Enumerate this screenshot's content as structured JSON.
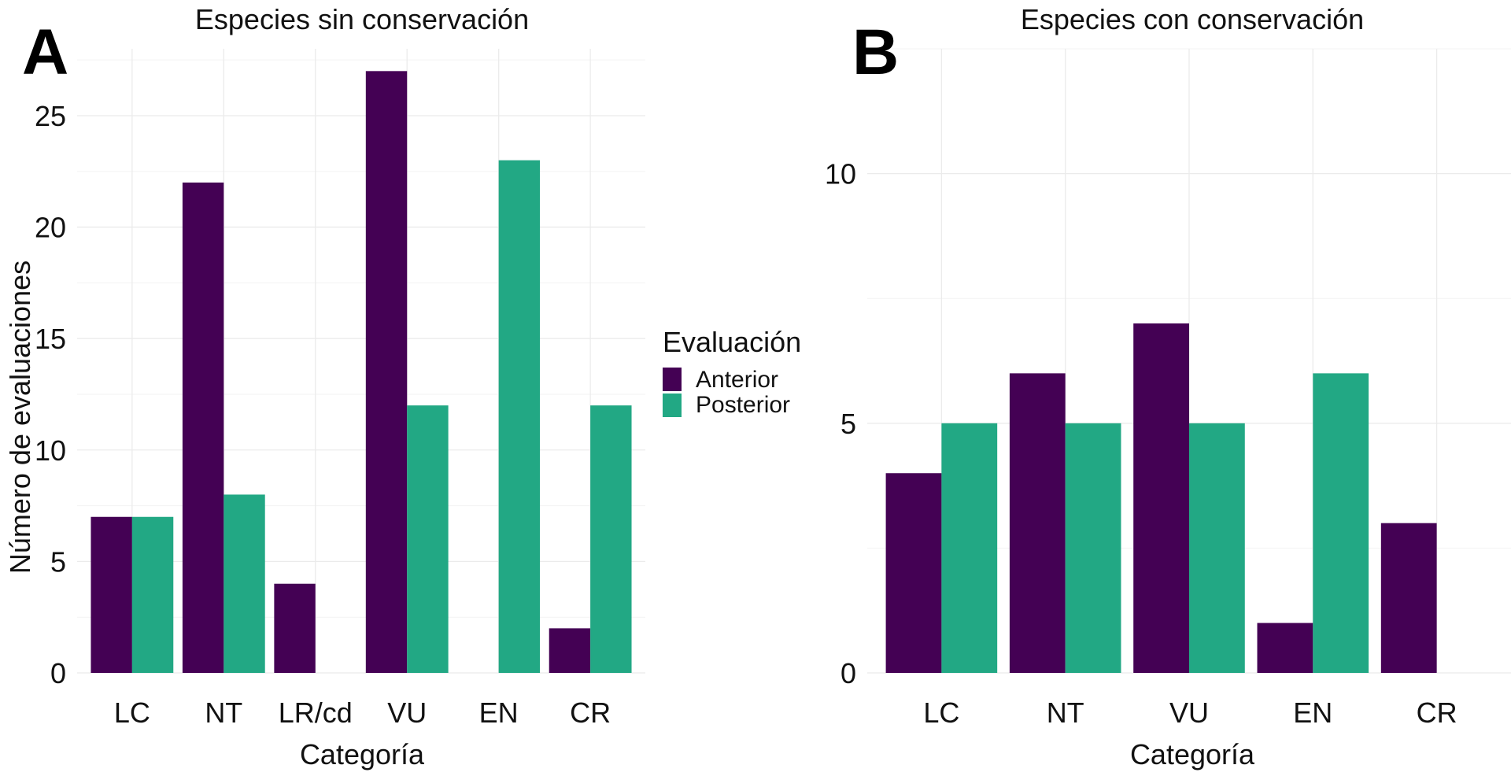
{
  "chart_data": [
    {
      "panel_label": "A",
      "type": "bar",
      "title": "Especies sin conservación",
      "xlabel": "Categoría",
      "ylabel": "Número de evaluaciones",
      "categories": [
        "LC",
        "NT",
        "LR/cd",
        "VU",
        "EN",
        "CR"
      ],
      "series": [
        {
          "name": "Anterior",
          "values": [
            7,
            22,
            4,
            27,
            0,
            2
          ]
        },
        {
          "name": "Posterior",
          "values": [
            7,
            8,
            0,
            12,
            23,
            12
          ]
        }
      ],
      "ylim": [
        0,
        28
      ],
      "yticks": [
        0,
        5,
        10,
        15,
        20,
        25
      ],
      "grid": true
    },
    {
      "panel_label": "B",
      "type": "bar",
      "title": "Especies con conservación",
      "xlabel": "Categoría",
      "ylabel": "",
      "categories": [
        "LC",
        "NT",
        "VU",
        "EN",
        "CR"
      ],
      "series": [
        {
          "name": "Anterior",
          "values": [
            4,
            6,
            7,
            1,
            3
          ]
        },
        {
          "name": "Posterior",
          "values": [
            5,
            5,
            5,
            6,
            0
          ]
        }
      ],
      "ylim": [
        0,
        12.5
      ],
      "yticks": [
        0,
        5,
        10
      ],
      "grid": true
    }
  ],
  "legend": {
    "title": "Evaluación",
    "placement": "between-panels",
    "items": [
      {
        "label": "Anterior",
        "color": "#440154"
      },
      {
        "label": "Posterior",
        "color": "#22a884"
      }
    ]
  },
  "colors": {
    "Anterior": "#440154",
    "Posterior": "#22a884"
  }
}
